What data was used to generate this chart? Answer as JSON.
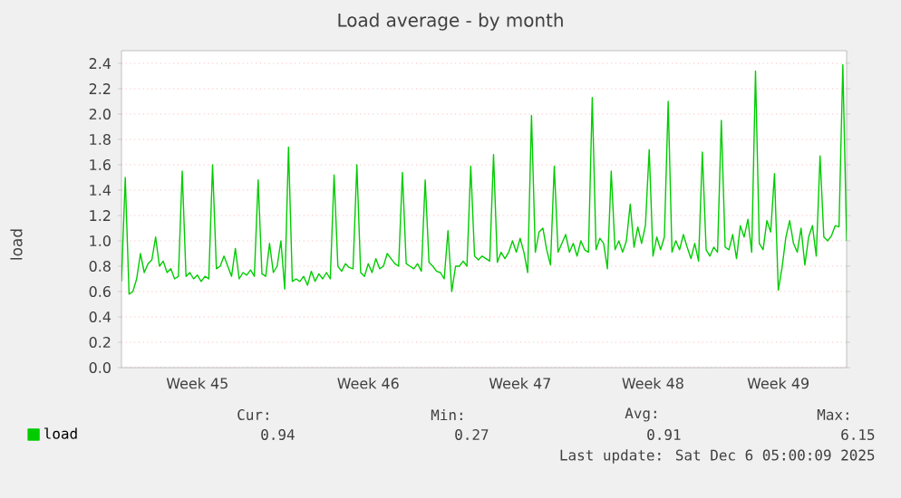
{
  "chart_data": {
    "type": "line",
    "title": "Load average - by month",
    "ylabel": "load",
    "categories": [
      null,
      null,
      null,
      null,
      null,
      null,
      null,
      null,
      null,
      null,
      null,
      null,
      null,
      null,
      null,
      null,
      null,
      null,
      null,
      null,
      "Week 45",
      null,
      null,
      null,
      null,
      null,
      null,
      null,
      null,
      null,
      null,
      null,
      null,
      null,
      null,
      null,
      null,
      null,
      null,
      null,
      null,
      null,
      null,
      null,
      null,
      null,
      null,
      null,
      null,
      null,
      null,
      null,
      null,
      null,
      null,
      null,
      null,
      null,
      null,
      null,
      null,
      null,
      null,
      null,
      null,
      "Week 46",
      null,
      null,
      null,
      null,
      null,
      null,
      null,
      null,
      null,
      null,
      null,
      null,
      null,
      null,
      null,
      null,
      null,
      null,
      null,
      null,
      null,
      null,
      null,
      null,
      null,
      null,
      null,
      null,
      null,
      null,
      null,
      null,
      null,
      null,
      null,
      null,
      null,
      null,
      null,
      "Week 47",
      null,
      null,
      null,
      null,
      null,
      null,
      null,
      null,
      null,
      null,
      null,
      null,
      null,
      null,
      null,
      null,
      null,
      null,
      null,
      null,
      null,
      null,
      null,
      null,
      null,
      null,
      null,
      null,
      null,
      null,
      null,
      null,
      null,
      null,
      "Week 48",
      null,
      null,
      null,
      null,
      null,
      null,
      null,
      null,
      null,
      null,
      null,
      null,
      null,
      null,
      null,
      null,
      null,
      null,
      null,
      null,
      null,
      null,
      null,
      null,
      null,
      null,
      null,
      null,
      null,
      null,
      null,
      null,
      "Week 49",
      null,
      null,
      null,
      null,
      null,
      null,
      null,
      null,
      null,
      null,
      null,
      null,
      null,
      null,
      null,
      null,
      null,
      null
    ],
    "series": [
      {
        "name": "load",
        "color": "#00cc00",
        "values": [
          0.68,
          1.5,
          0.58,
          0.6,
          0.7,
          0.9,
          0.75,
          0.82,
          0.85,
          1.03,
          0.8,
          0.84,
          0.75,
          0.78,
          0.7,
          0.72,
          1.55,
          0.72,
          0.75,
          0.7,
          0.73,
          0.68,
          0.72,
          0.7,
          1.6,
          0.78,
          0.8,
          0.88,
          0.8,
          0.72,
          0.94,
          0.7,
          0.75,
          0.73,
          0.77,
          0.72,
          1.48,
          0.74,
          0.72,
          0.98,
          0.75,
          0.8,
          1.0,
          0.62,
          1.74,
          0.68,
          0.7,
          0.68,
          0.72,
          0.65,
          0.76,
          0.68,
          0.74,
          0.7,
          0.75,
          0.7,
          1.52,
          0.8,
          0.76,
          0.82,
          0.79,
          0.78,
          1.6,
          0.75,
          0.72,
          0.82,
          0.75,
          0.86,
          0.78,
          0.8,
          0.9,
          0.86,
          0.82,
          0.8,
          1.54,
          0.82,
          0.8,
          0.78,
          0.82,
          0.76,
          1.48,
          0.83,
          0.8,
          0.76,
          0.75,
          0.7,
          1.08,
          0.6,
          0.8,
          0.8,
          0.84,
          0.8,
          1.59,
          0.88,
          0.85,
          0.88,
          0.86,
          0.84,
          1.68,
          0.83,
          0.91,
          0.86,
          0.91,
          1.0,
          0.91,
          1.02,
          0.91,
          0.75,
          1.99,
          0.91,
          1.07,
          1.1,
          0.93,
          0.81,
          1.59,
          0.91,
          0.98,
          1.05,
          0.91,
          0.98,
          0.88,
          1.0,
          0.93,
          0.91,
          2.13,
          0.93,
          1.02,
          0.98,
          0.78,
          1.55,
          0.93,
          1.0,
          0.91,
          1.0,
          1.29,
          0.95,
          1.11,
          0.98,
          1.12,
          1.72,
          0.88,
          1.03,
          0.93,
          1.03,
          2.1,
          0.91,
          1.0,
          0.93,
          1.05,
          0.95,
          0.86,
          0.98,
          0.84,
          1.7,
          0.93,
          0.88,
          0.95,
          0.91,
          1.95,
          0.95,
          0.93,
          1.05,
          0.86,
          1.12,
          1.03,
          1.17,
          0.91,
          2.34,
          0.98,
          0.93,
          1.16,
          1.07,
          1.53,
          0.61,
          0.79,
          1.03,
          1.16,
          0.98,
          0.91,
          1.1,
          0.81,
          1.03,
          1.12,
          0.88,
          1.67,
          1.03,
          1.0,
          1.04,
          1.12,
          1.11,
          2.39,
          1.0
        ]
      }
    ],
    "ylim": [
      0,
      2.5
    ],
    "yticks": [
      {
        "value": 0,
        "label": "0.0"
      },
      {
        "value": 0.2,
        "label": "0.2"
      },
      {
        "value": 0.4,
        "label": "0.4"
      },
      {
        "value": 0.6,
        "label": "0.6"
      },
      {
        "value": 0.8,
        "label": "0.8"
      },
      {
        "value": 1.0,
        "label": "1.0"
      },
      {
        "value": 1.2,
        "label": "1.2"
      },
      {
        "value": 1.4,
        "label": "1.4"
      },
      {
        "value": 1.6,
        "label": "1.6"
      },
      {
        "value": 1.8,
        "label": "1.8"
      },
      {
        "value": 2.0,
        "label": "2.0"
      },
      {
        "value": 2.2,
        "label": "2.2"
      },
      {
        "value": 2.4,
        "label": "2.4"
      }
    ],
    "grid": "y",
    "legend": "bottom left",
    "marker": "none",
    "line_style": "solid",
    "annotations": [
      "Cur:",
      "Min:",
      "Avg:",
      "Max:",
      "0.94",
      "0.27",
      "0.91",
      "6.15",
      "Last update: Sat Dec  6 05:00:09 2025"
    ]
  }
}
